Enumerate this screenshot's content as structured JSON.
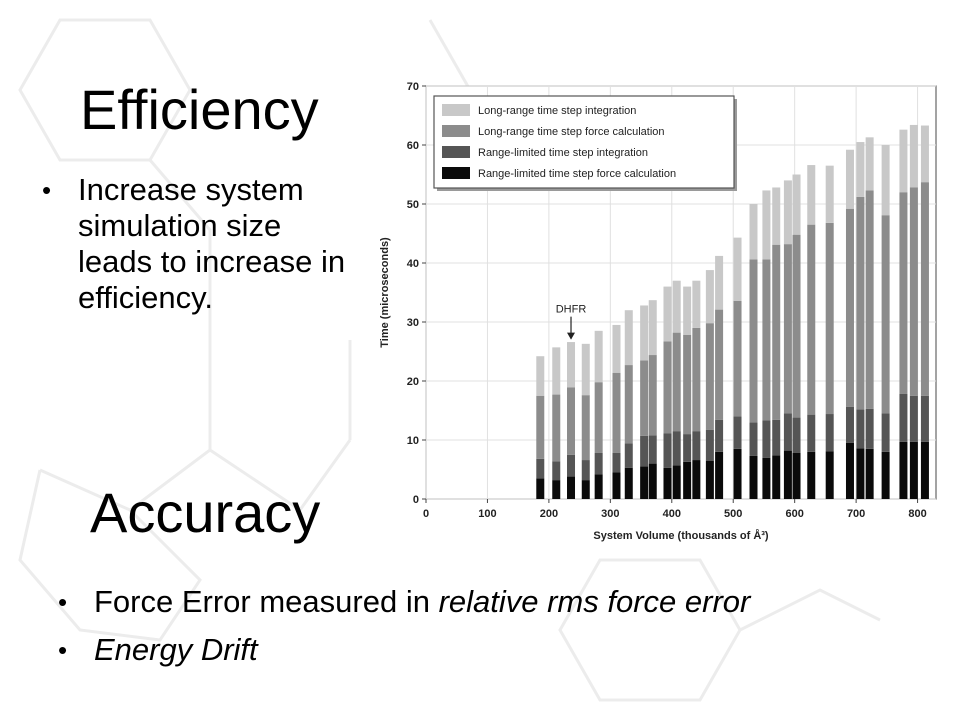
{
  "efficiency": {
    "title": "Efficiency",
    "bullet": "Increase system simulation size leads to increase in efficiency."
  },
  "accuracy": {
    "title": "Accuracy",
    "bullet1_plain": "Force Error measured in ",
    "bullet1_italic": "relative rms force error",
    "bullet2": "Energy Drift"
  },
  "colors": {
    "long_range_integration": "#c8c8c8",
    "long_range_force": "#8c8c8c",
    "range_limited_integration": "#555555",
    "range_limited_force": "#0a0a0a"
  },
  "chart_data": {
    "type": "bar",
    "stacked": true,
    "xlabel": "System Volume (thousands of Å³)",
    "ylabel": "Time (microseconds)",
    "xlim": [
      0,
      830
    ],
    "ylim": [
      0,
      70
    ],
    "xticks": [
      0,
      100,
      200,
      300,
      400,
      500,
      600,
      700,
      800
    ],
    "yticks": [
      0,
      10,
      20,
      30,
      40,
      50,
      60,
      70
    ],
    "grid": true,
    "legend_position": "top-left",
    "annotation": {
      "text": "DHFR",
      "x": 236,
      "y": 26.5
    },
    "series": [
      {
        "name": "Range-limited time step force calculation",
        "key": "range_limited_force"
      },
      {
        "name": "Range-limited time step integration",
        "key": "range_limited_integration"
      },
      {
        "name": "Long-range time step force calculation",
        "key": "long_range_force"
      },
      {
        "name": "Long-range time step integration",
        "key": "long_range_integration"
      }
    ],
    "x": [
      186,
      212,
      236,
      260,
      281,
      310,
      330,
      355,
      369,
      393,
      408,
      425,
      440,
      462,
      477,
      507,
      533,
      554,
      570,
      589,
      603,
      627,
      657,
      690,
      707,
      722,
      748,
      777,
      794,
      812
    ],
    "range_limited_force": [
      3.5,
      3.2,
      3.8,
      3.2,
      4.2,
      4.5,
      5.3,
      5.5,
      6.0,
      5.3,
      5.7,
      6.3,
      6.6,
      6.5,
      8.0,
      8.5,
      7.3,
      7.0,
      7.4,
      8.2,
      7.8,
      8.0,
      8.1,
      9.5,
      8.6,
      8.5,
      8.0,
      9.7,
      9.7,
      9.7
    ],
    "range_limited_integration": [
      3.3,
      3.2,
      3.7,
      3.4,
      3.6,
      3.3,
      4.1,
      5.2,
      4.8,
      5.8,
      5.8,
      4.7,
      4.9,
      5.2,
      5.4,
      5.5,
      5.7,
      6.3,
      6.0,
      6.3,
      6.0,
      6.3,
      6.3,
      6.1,
      6.6,
      6.8,
      6.5,
      8.1,
      7.8,
      7.8
    ],
    "long_range_force": [
      10.7,
      11.3,
      11.4,
      11.0,
      12.0,
      13.6,
      13.3,
      12.8,
      13.6,
      15.6,
      16.7,
      16.8,
      17.5,
      18.1,
      18.7,
      19.6,
      27.6,
      27.3,
      29.7,
      28.7,
      31.0,
      32.2,
      32.4,
      33.6,
      36.0,
      37.0,
      33.6,
      34.2,
      35.3,
      36.2
    ],
    "long_range_integration": [
      6.7,
      8.0,
      7.7,
      8.7,
      8.7,
      8.1,
      9.3,
      9.3,
      9.3,
      9.3,
      8.8,
      8.2,
      8.0,
      9.0,
      9.1,
      10.7,
      9.4,
      11.7,
      9.7,
      10.8,
      10.2,
      10.1,
      9.7,
      10.0,
      9.3,
      9.0,
      11.9,
      10.6,
      10.6,
      9.6
    ]
  }
}
